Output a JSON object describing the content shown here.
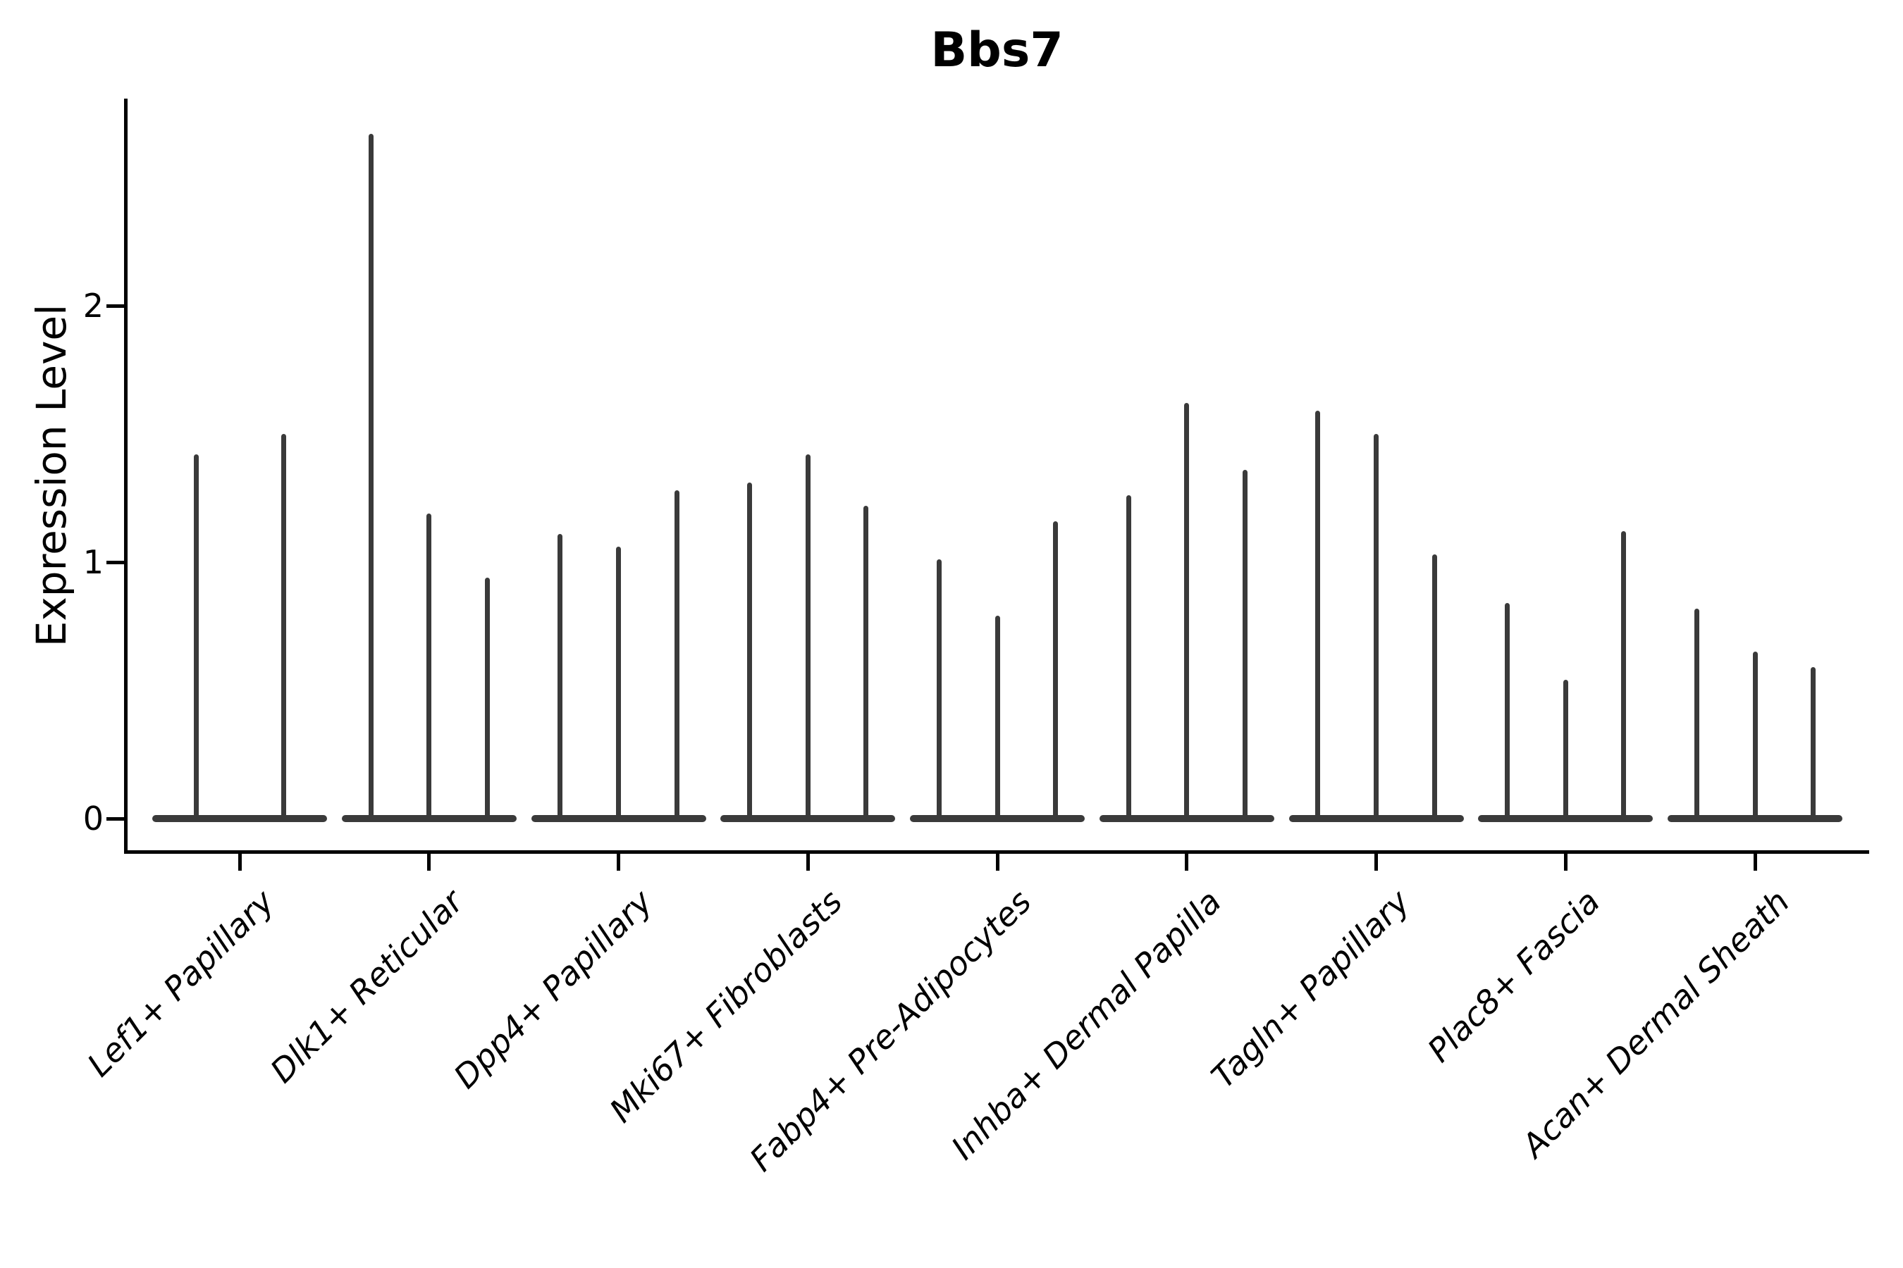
{
  "chart_data": {
    "type": "violin",
    "title": "Bbs7",
    "ylabel": "Expression Level",
    "xlabel": "",
    "yticks": [
      0,
      1,
      2
    ],
    "ylim": [
      0,
      2.81
    ],
    "grid": false,
    "legend": "none",
    "categories": [
      "Lef1+ Papillary",
      "Dlk1+ Reticular",
      "Dpp4+ Papillary",
      "Mki67+ Fibroblasts",
      "Fabp4+ Pre-Adipocytes",
      "Inhba+ Dermal Papilla",
      "Tagln+ Papillary",
      "Plac8+ Fascia",
      "Acan+ Dermal Sheath"
    ],
    "series": [
      {
        "category": "Lef1+ Papillary",
        "violin_max_expression": [
          1.42,
          1.5
        ]
      },
      {
        "category": "Dlk1+ Reticular",
        "violin_max_expression": [
          2.67,
          1.19,
          0.94
        ]
      },
      {
        "category": "Dpp4+ Papillary",
        "violin_max_expression": [
          1.11,
          1.06,
          1.28
        ]
      },
      {
        "category": "Mki67+ Fibroblasts",
        "violin_max_expression": [
          1.31,
          1.42,
          1.22
        ]
      },
      {
        "category": "Fabp4+ Pre-Adipocytes",
        "violin_max_expression": [
          1.01,
          0.79,
          1.16
        ]
      },
      {
        "category": "Inhba+ Dermal Papilla",
        "violin_max_expression": [
          1.26,
          1.62,
          1.36
        ]
      },
      {
        "category": "Tagln+ Papillary",
        "violin_max_expression": [
          1.59,
          1.5,
          1.03
        ]
      },
      {
        "category": "Plac8+ Fascia",
        "violin_max_expression": [
          0.84,
          0.54,
          1.12
        ]
      },
      {
        "category": "Acan+ Dermal Sheath",
        "violin_max_expression": [
          0.82,
          0.65,
          0.59
        ]
      }
    ],
    "description": "Violin plot of Bbs7 expression; violins are collapsed near 0 with thin spikes up to each violin's maximum expression value.",
    "colors": {
      "violin": "#3a3a3a",
      "axis": "#000000",
      "background": "#ffffff",
      "text": "#000000"
    }
  }
}
